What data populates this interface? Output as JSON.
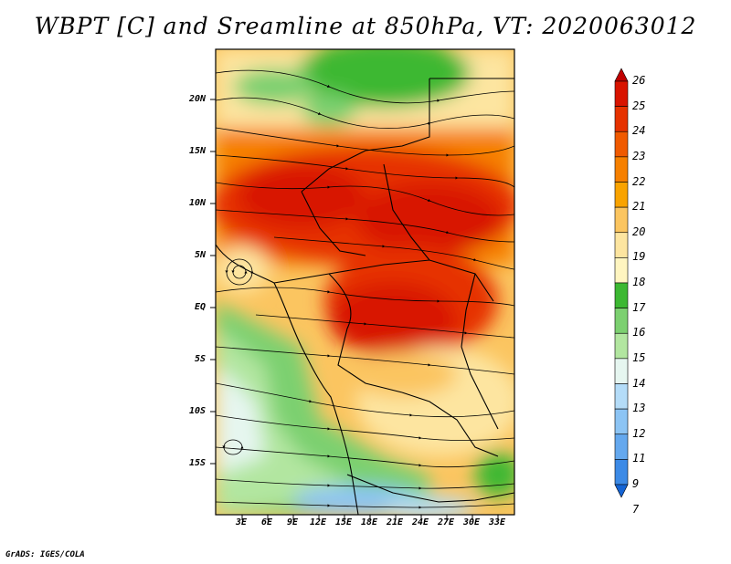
{
  "title": "WBPT [C] and Sreamline at 850hPa, VT: 2020063012",
  "credit": "GrADS: IGES/COLA",
  "lat_labels": [
    "20N",
    "15N",
    "10N",
    "5N",
    "EQ",
    "5S",
    "10S",
    "15S"
  ],
  "lon_labels": [
    "3E",
    "6E",
    "9E",
    "12E",
    "15E",
    "18E",
    "21E",
    "24E",
    "27E",
    "30E",
    "33E"
  ],
  "colorbar": {
    "labels": [
      "26",
      "25",
      "24",
      "23",
      "22",
      "21",
      "20",
      "19",
      "18",
      "17",
      "16",
      "15",
      "14",
      "13",
      "12",
      "11",
      "9",
      "7"
    ],
    "colors": [
      "#c00000",
      "#d81400",
      "#e63200",
      "#f05a00",
      "#f68000",
      "#f9a300",
      "#fbc560",
      "#fde5a0",
      "#fff5c0",
      "#3cb832",
      "#7cd070",
      "#b2e6a0",
      "#e6f6f0",
      "#b4dcf8",
      "#8cc4f4",
      "#64a8ee",
      "#3c8ae6",
      "#1464d4"
    ]
  },
  "legend_colors": {
    "land_hot": "#e23a00",
    "land_warm": "#f79a32",
    "land_mild": "#fde49a",
    "land_cool": "#48bc3e",
    "ocean_cold": "#a0d2f4"
  }
}
